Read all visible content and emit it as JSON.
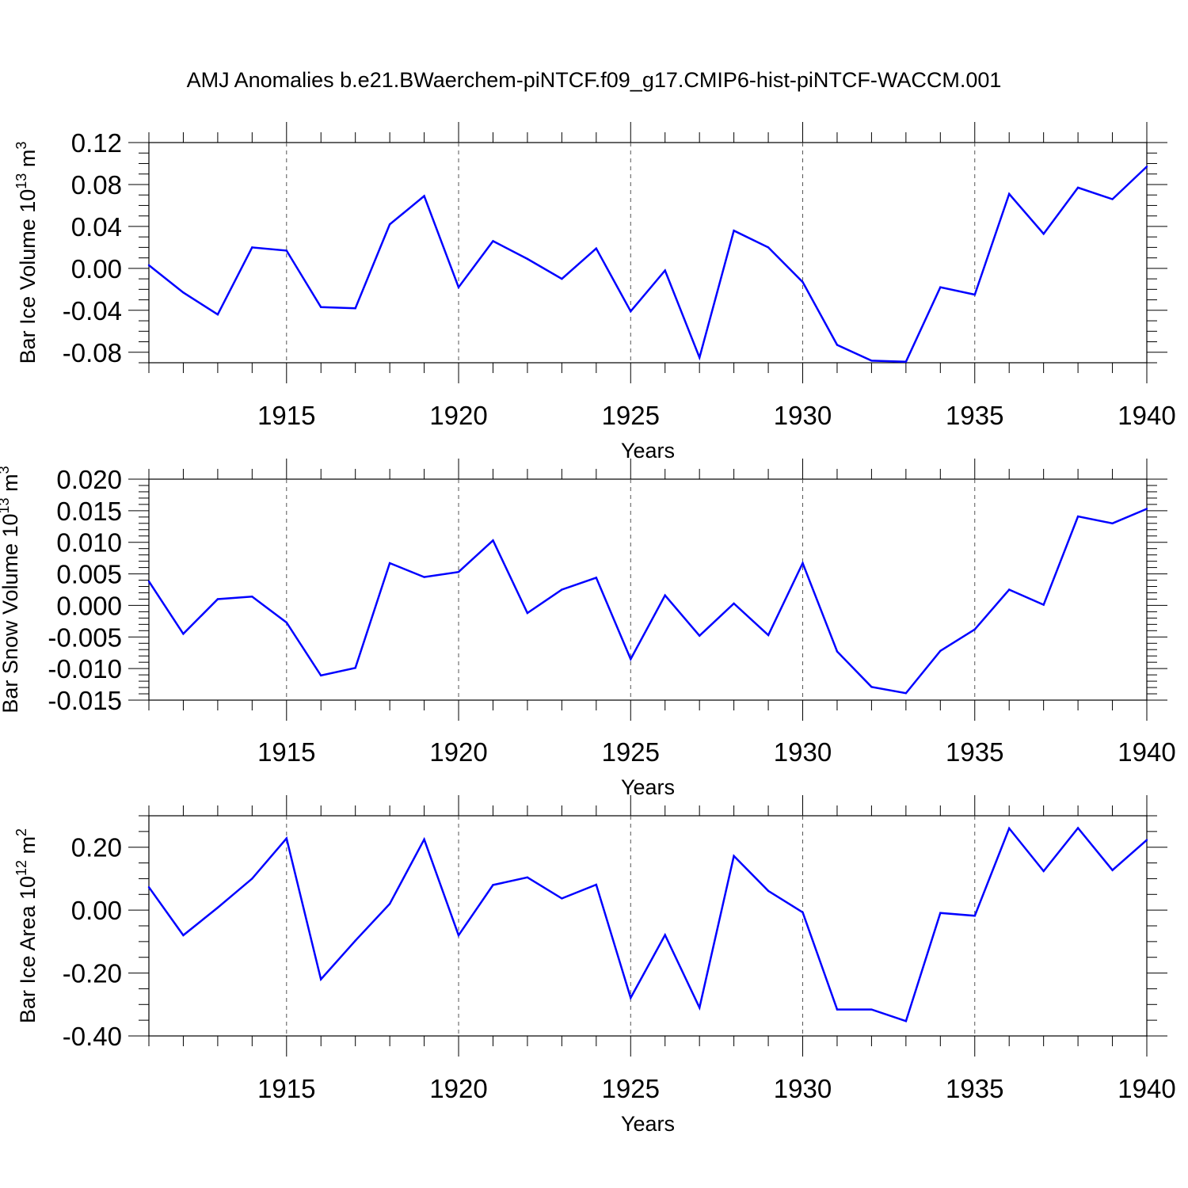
{
  "title": "AMJ Anomalies b.e21.BWaerchem-piNTCF.f09_g17.CMIP6-hist-piNTCF-WACCM.001",
  "chart_data": [
    {
      "type": "line",
      "ylabel_main": "Bar Ice Volume 10",
      "ylabel_exp": "13",
      "ylabel_unit": " m",
      "ylabel_unit_exp": "3",
      "xlabel": "Years",
      "xlim": [
        1911,
        1940
      ],
      "ylim": [
        -0.09,
        0.12
      ],
      "xticks": [
        1915,
        1920,
        1925,
        1930,
        1935,
        1940
      ],
      "xtick_labels": [
        "1915",
        "1920",
        "1925",
        "1930",
        "1935",
        "1940"
      ],
      "yticks": [
        -0.08,
        -0.04,
        0.0,
        0.04,
        0.08,
        0.12
      ],
      "ytick_labels": [
        "-0.08",
        "-0.04",
        "0.00",
        "0.04",
        "0.08",
        "0.12"
      ],
      "ymin_tick_step": 0.01,
      "line_color": "#0000ff",
      "x": [
        1911,
        1912,
        1913,
        1914,
        1915,
        1916,
        1917,
        1918,
        1919,
        1920,
        1921,
        1922,
        1923,
        1924,
        1925,
        1926,
        1927,
        1928,
        1929,
        1930,
        1931,
        1932,
        1933,
        1934,
        1935,
        1936,
        1937,
        1938,
        1939,
        1940
      ],
      "values": [
        0.003,
        -0.023,
        -0.044,
        0.02,
        0.017,
        -0.037,
        -0.038,
        0.042,
        0.069,
        -0.018,
        0.026,
        0.009,
        -0.01,
        0.019,
        -0.041,
        -0.002,
        -0.085,
        0.036,
        0.02,
        -0.013,
        -0.073,
        -0.088,
        -0.089,
        -0.018,
        -0.025,
        0.071,
        0.033,
        0.077,
        0.066,
        0.097
      ]
    },
    {
      "type": "line",
      "ylabel_main": "Bar Snow Volume 10",
      "ylabel_exp": "13",
      "ylabel_unit": " m",
      "ylabel_unit_exp": "3",
      "xlabel": "Years",
      "xlim": [
        1911,
        1940
      ],
      "ylim": [
        -0.015,
        0.02
      ],
      "xticks": [
        1915,
        1920,
        1925,
        1930,
        1935,
        1940
      ],
      "xtick_labels": [
        "1915",
        "1920",
        "1925",
        "1930",
        "1935",
        "1940"
      ],
      "yticks": [
        -0.015,
        -0.01,
        -0.005,
        0.0,
        0.005,
        0.01,
        0.015,
        0.02
      ],
      "ytick_labels": [
        "-0.015",
        "-0.010",
        "-0.005",
        "0.000",
        "0.005",
        "0.010",
        "0.015",
        "0.020"
      ],
      "ymin_tick_step": 0.001,
      "line_color": "#0000ff",
      "x": [
        1911,
        1912,
        1913,
        1914,
        1915,
        1916,
        1917,
        1918,
        1919,
        1920,
        1921,
        1922,
        1923,
        1924,
        1925,
        1926,
        1927,
        1928,
        1929,
        1930,
        1931,
        1932,
        1933,
        1934,
        1935,
        1936,
        1937,
        1938,
        1939,
        1940
      ],
      "values": [
        0.0038,
        -0.0045,
        0.001,
        0.0014,
        -0.0027,
        -0.0111,
        -0.0099,
        0.0067,
        0.0045,
        0.0053,
        0.0103,
        -0.0012,
        0.0025,
        0.0044,
        -0.0085,
        0.0016,
        -0.0048,
        0.0003,
        -0.0047,
        0.0067,
        -0.0073,
        -0.0129,
        -0.0139,
        -0.0072,
        -0.0038,
        0.0025,
        0.0001,
        0.0141,
        0.013,
        0.0153
      ]
    },
    {
      "type": "line",
      "ylabel_main": "Bar Ice Area 10",
      "ylabel_exp": "12",
      "ylabel_unit": " m",
      "ylabel_unit_exp": "2",
      "xlabel": "Years",
      "xlim": [
        1911,
        1940
      ],
      "ylim": [
        -0.4,
        0.3
      ],
      "xticks": [
        1915,
        1920,
        1925,
        1930,
        1935,
        1940
      ],
      "xtick_labels": [
        "1915",
        "1920",
        "1925",
        "1930",
        "1935",
        "1940"
      ],
      "yticks": [
        -0.4,
        -0.2,
        0.0,
        0.2
      ],
      "ytick_labels": [
        "-0.40",
        "-0.20",
        "0.00",
        "0.20"
      ],
      "ymin_tick_step": 0.05,
      "line_color": "#0000ff",
      "x": [
        1911,
        1912,
        1913,
        1914,
        1915,
        1916,
        1917,
        1918,
        1919,
        1920,
        1921,
        1922,
        1923,
        1924,
        1925,
        1926,
        1927,
        1928,
        1929,
        1930,
        1931,
        1932,
        1933,
        1934,
        1935,
        1936,
        1937,
        1938,
        1939,
        1940
      ],
      "values": [
        0.073,
        -0.08,
        0.008,
        0.1,
        0.228,
        -0.22,
        -0.097,
        0.02,
        0.225,
        -0.08,
        0.08,
        0.104,
        0.037,
        0.081,
        -0.279,
        -0.079,
        -0.31,
        0.172,
        0.061,
        -0.007,
        -0.316,
        -0.316,
        -0.353,
        -0.009,
        -0.018,
        0.26,
        0.124,
        0.261,
        0.127,
        0.223
      ]
    }
  ]
}
